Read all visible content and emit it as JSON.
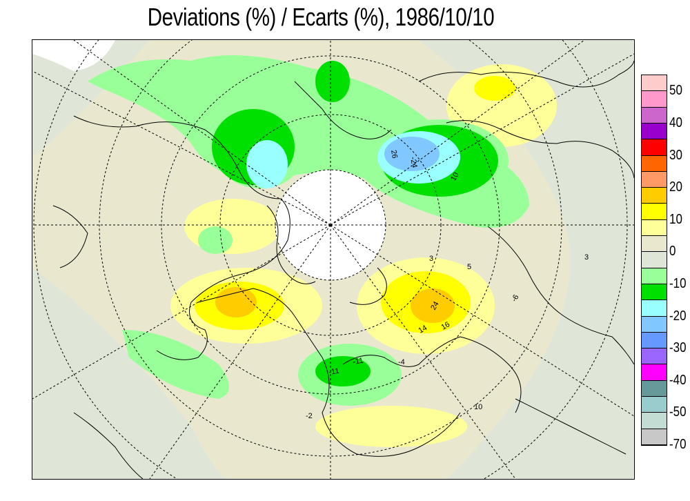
{
  "title": "Deviations (%) / Ecarts (%), 1986/10/10",
  "legend": {
    "colors": [
      "#ffcccc",
      "#ff99cc",
      "#cc66cc",
      "#9900cc",
      "#ff0000",
      "#ff6600",
      "#ff9966",
      "#ffcc00",
      "#ffff00",
      "#ffff99",
      "#e9e8cf",
      "#dfe6d8",
      "#99ff99",
      "#00e000",
      "#99ffff",
      "#80c8ff",
      "#6699ff",
      "#9966ff",
      "#ff00ff",
      "#669999",
      "#99cccc",
      "#c3dcd4",
      "#c8c8c8"
    ],
    "labels": [
      "50",
      "40",
      "30",
      "20",
      "10",
      "0",
      "-10",
      "-20",
      "-30",
      "-40",
      "-50",
      "-70"
    ],
    "label_rows": [
      1,
      3,
      5,
      7,
      9,
      11,
      13,
      15,
      17,
      19,
      21,
      23
    ]
  },
  "map": {
    "contour_labels": [
      "26",
      "-24",
      "24",
      "14",
      "16",
      "10",
      "10",
      "-11",
      "-11",
      "3",
      "5",
      "-6",
      "-4",
      "3",
      "-2"
    ]
  }
}
